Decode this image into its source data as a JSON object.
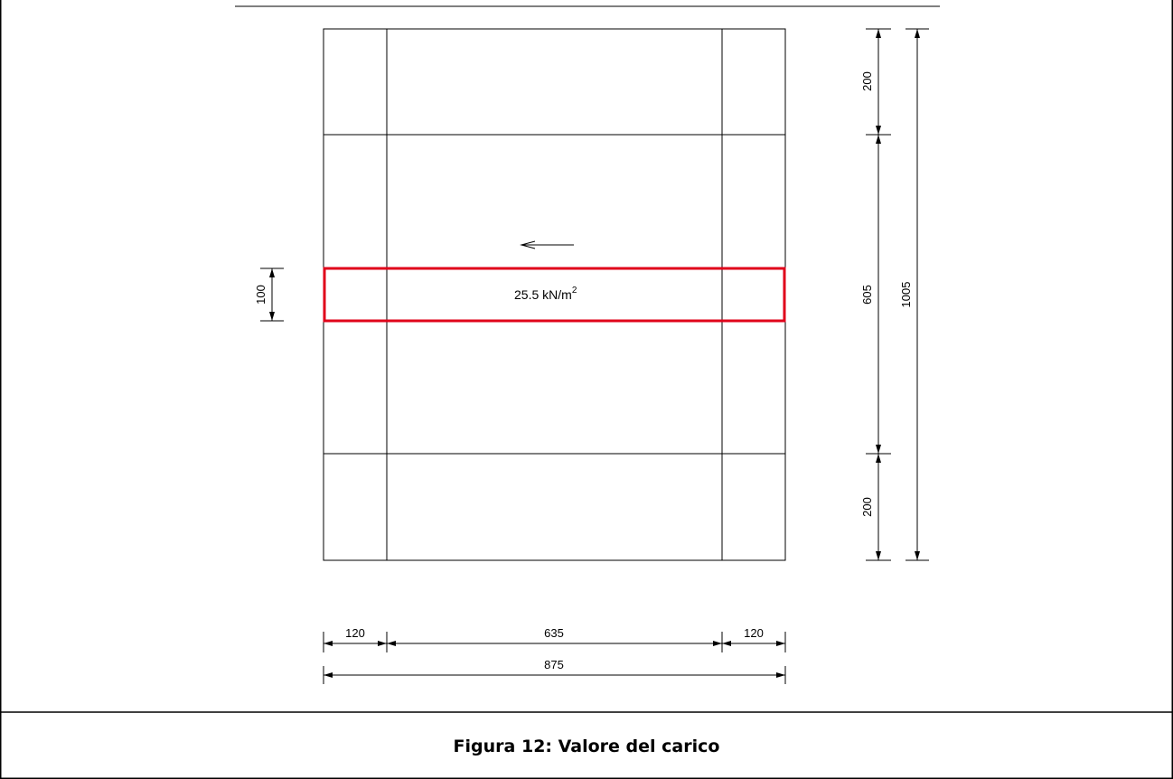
{
  "figure": {
    "caption": "Figura 12: Valore del carico",
    "load": {
      "value": "25.5 kN/m",
      "exponent": "2",
      "highlight_color": "#e0001a"
    },
    "dimensions": {
      "horizontal": {
        "left": "120",
        "middle": "635",
        "right": "120",
        "total": "875"
      },
      "vertical": {
        "top": "200",
        "middle": "605",
        "bottom": "200",
        "total": "1005",
        "band": "100"
      }
    },
    "line_color": "#000000"
  }
}
